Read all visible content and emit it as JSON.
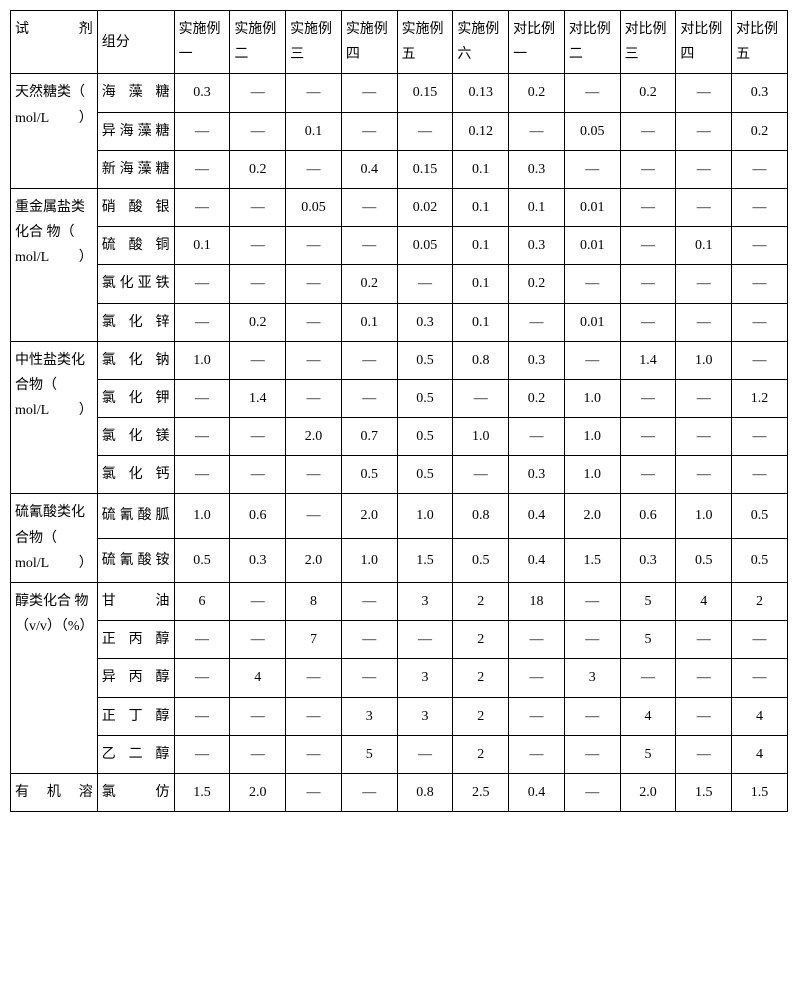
{
  "colors": {
    "background": "#ffffff",
    "border": "#000000",
    "text": "#000000"
  },
  "font": {
    "family": "SimSun",
    "size_pt": 14
  },
  "header": {
    "reagent": "试剂",
    "component": "组分",
    "cols": [
      "实施例一",
      "实施例二",
      "实施例三",
      "实施例四",
      "实施例五",
      "实施例六",
      "对比例一",
      "对比例二",
      "对比例三",
      "对比例四",
      "对比例五"
    ]
  },
  "groups": [
    {
      "label": "天然糖类（ mol/L）",
      "rows": [
        {
          "component": "海藻糖",
          "vals": [
            "0.3",
            "—",
            "—",
            "—",
            "0.15",
            "0.13",
            "0.2",
            "—",
            "0.2",
            "—",
            "0.3"
          ]
        },
        {
          "component": "异海藻糖",
          "vals": [
            "—",
            "—",
            "0.1",
            "—",
            "—",
            "0.12",
            "—",
            "0.05",
            "—",
            "—",
            "0.2"
          ]
        },
        {
          "component": "新海藻糖",
          "vals": [
            "—",
            "0.2",
            "—",
            "0.4",
            "0.15",
            "0.1",
            "0.3",
            "—",
            "—",
            "—",
            "—"
          ]
        }
      ]
    },
    {
      "label": "重金属盐类化合 物（ mol/L）",
      "rows": [
        {
          "component": "硝酸银",
          "vals": [
            "—",
            "—",
            "0.05",
            "—",
            "0.02",
            "0.1",
            "0.1",
            "0.01",
            "—",
            "—",
            "—"
          ]
        },
        {
          "component": "硫酸铜",
          "vals": [
            "0.1",
            "—",
            "—",
            "—",
            "0.05",
            "0.1",
            "0.3",
            "0.01",
            "—",
            "0.1",
            "—"
          ]
        },
        {
          "component": "氯化亚铁",
          "vals": [
            "—",
            "—",
            "—",
            "0.2",
            "—",
            "0.1",
            "0.2",
            "—",
            "—",
            "—",
            "—"
          ]
        },
        {
          "component": "氯化锌",
          "vals": [
            "—",
            "0.2",
            "—",
            "0.1",
            "0.3",
            "0.1",
            "—",
            "0.01",
            "—",
            "—",
            "—"
          ]
        }
      ]
    },
    {
      "label": "中性盐类化合物（ mol/L）",
      "rows": [
        {
          "component": "氯化钠",
          "vals": [
            "1.0",
            "—",
            "—",
            "—",
            "0.5",
            "0.8",
            "0.3",
            "—",
            "1.4",
            "1.0",
            "—"
          ]
        },
        {
          "component": "氯化钾",
          "vals": [
            "—",
            "1.4",
            "—",
            "—",
            "0.5",
            "—",
            "0.2",
            "1.0",
            "—",
            "—",
            "1.2"
          ]
        },
        {
          "component": "氯化镁",
          "vals": [
            "—",
            "—",
            "2.0",
            "0.7",
            "0.5",
            "1.0",
            "—",
            "1.0",
            "—",
            "—",
            "—"
          ]
        },
        {
          "component": "氯化钙",
          "vals": [
            "—",
            "—",
            "—",
            "0.5",
            "0.5",
            "—",
            "0.3",
            "1.0",
            "—",
            "—",
            "—"
          ]
        }
      ]
    },
    {
      "label": "硫氰酸类化合物（ mol/L）",
      "rows": [
        {
          "component": "硫氰酸胍",
          "vals": [
            "1.0",
            "0.6",
            "—",
            "2.0",
            "1.0",
            "0.8",
            "0.4",
            "2.0",
            "0.6",
            "1.0",
            "0.5"
          ]
        },
        {
          "component": "硫氰酸铵",
          "vals": [
            "0.5",
            "0.3",
            "2.0",
            "1.0",
            "1.5",
            "0.5",
            "0.4",
            "1.5",
            "0.3",
            "0.5",
            "0.5"
          ]
        }
      ]
    },
    {
      "label": "醇类化合 物（v/v）（%）",
      "rows": [
        {
          "component": "甘油",
          "vals": [
            "6",
            "—",
            "8",
            "—",
            "3",
            "2",
            "18",
            "—",
            "5",
            "4",
            "2"
          ]
        },
        {
          "component": "正丙醇",
          "vals": [
            "—",
            "—",
            "7",
            "—",
            "—",
            "2",
            "—",
            "—",
            "5",
            "—",
            "—"
          ]
        },
        {
          "component": "异丙醇",
          "vals": [
            "—",
            "4",
            "—",
            "—",
            "3",
            "2",
            "—",
            "3",
            "—",
            "—",
            "—"
          ]
        },
        {
          "component": "正丁醇",
          "vals": [
            "—",
            "—",
            "—",
            "3",
            "3",
            "2",
            "—",
            "—",
            "4",
            "—",
            "4"
          ]
        },
        {
          "component": "乙二醇",
          "vals": [
            "—",
            "—",
            "—",
            "5",
            "—",
            "2",
            "—",
            "—",
            "5",
            "—",
            "4"
          ]
        }
      ]
    },
    {
      "label": "有机溶",
      "rows": [
        {
          "component": "氯仿",
          "vals": [
            "1.5",
            "2.0",
            "—",
            "—",
            "0.8",
            "2.5",
            "0.4",
            "—",
            "2.0",
            "1.5",
            "1.5"
          ]
        }
      ]
    }
  ]
}
